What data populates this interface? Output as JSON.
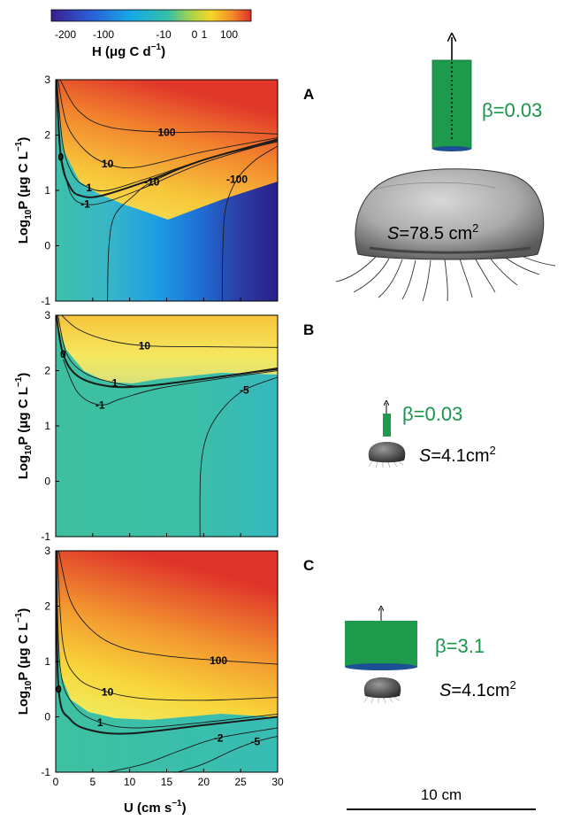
{
  "colorbar": {
    "title_main": "H (μg C d",
    "title_exp": "−1",
    "title_close": ")",
    "ticks": [
      "-200",
      "-100",
      "-10",
      "0",
      "1",
      "100"
    ],
    "colors": [
      "#3b1f8f",
      "#2a5fd6",
      "#17a9e6",
      "#33bfa8",
      "#a8d44a",
      "#f6d628",
      "#f5902a",
      "#e0312a"
    ]
  },
  "axes": {
    "ylabel_main": "Log",
    "ylabel_sub": "10",
    "ylabel_rest": "P (μg C L",
    "ylabel_exp": "−1",
    "ylabel_close": ")",
    "xlabel_main": "U (cm s",
    "xlabel_exp": "−1",
    "xlabel_close": ")",
    "yticks": [
      "3",
      "2",
      "1",
      "0",
      "-1"
    ],
    "xticks": [
      "0",
      "5",
      "10",
      "15",
      "20",
      "25",
      "30"
    ]
  },
  "panels": [
    {
      "letter": "A",
      "beta": "β=0.03",
      "s_label": "S",
      "s_value": "=78.5 cm",
      "s_exp": "2",
      "contour_labels": [
        "100",
        "10",
        "1",
        "0",
        "-1",
        "-10",
        "-100"
      ]
    },
    {
      "letter": "B",
      "beta": "β=0.03",
      "s_label": "S",
      "s_value": "=4.1cm",
      "s_exp": "2",
      "contour_labels": [
        "10",
        "1",
        "0",
        "-1",
        "-5"
      ]
    },
    {
      "letter": "C",
      "beta": "β=3.1",
      "s_label": "S",
      "s_value": "=4.1cm",
      "s_exp": "2",
      "contour_labels": [
        "100",
        "10",
        "1",
        "0",
        "-2",
        "-5"
      ]
    }
  ],
  "scalebar": {
    "label": "10 cm"
  },
  "chart_data": [
    {
      "type": "heatmap",
      "panel": "A",
      "x_range": [
        0,
        30
      ],
      "y_range": [
        -1,
        3
      ],
      "xlabel": "U (cm s−1)",
      "ylabel": "Log10P (μg C L−1)",
      "colorbar_label": "H (μg C d−1)",
      "contours": [
        {
          "level": 100,
          "points": [
            [
              0.6,
              3
            ],
            [
              3,
              2.45
            ],
            [
              7,
              2.15
            ],
            [
              15,
              2.05
            ],
            [
              22,
              2.06
            ],
            [
              30,
              2.02
            ]
          ]
        },
        {
          "level": 10,
          "points": [
            [
              0.3,
              3
            ],
            [
              1.5,
              2.2
            ],
            [
              4,
              1.72
            ],
            [
              7,
              1.48
            ],
            [
              11,
              1.42
            ],
            [
              20,
              1.7
            ],
            [
              30,
              1.95
            ]
          ]
        },
        {
          "level": 1,
          "points": [
            [
              0.15,
              3
            ],
            [
              1,
              1.8
            ],
            [
              2.5,
              1.25
            ],
            [
              4.5,
              1.05
            ],
            [
              7,
              1.0
            ],
            [
              12,
              1.2
            ],
            [
              20,
              1.55
            ],
            [
              30,
              1.93
            ]
          ]
        },
        {
          "level": 0,
          "points": [
            [
              0.1,
              3
            ],
            [
              0.7,
              1.6
            ],
            [
              2,
              1.05
            ],
            [
              3.5,
              0.9
            ],
            [
              6,
              0.9
            ],
            [
              12,
              1.15
            ],
            [
              20,
              1.55
            ],
            [
              30,
              1.92
            ]
          ]
        },
        {
          "level": -1,
          "points": [
            [
              0.5,
              1.75
            ],
            [
              2,
              0.95
            ],
            [
              4,
              0.75
            ],
            [
              7,
              0.8
            ],
            [
              12,
              1.05
            ],
            [
              20,
              1.5
            ],
            [
              30,
              1.9
            ]
          ]
        },
        {
          "level": -10,
          "points": [
            [
              7,
              -1
            ],
            [
              7.2,
              0
            ],
            [
              8,
              0.55
            ],
            [
              10.5,
              0.9
            ],
            [
              13,
              1.15
            ],
            [
              20,
              1.55
            ],
            [
              30,
              1.88
            ]
          ]
        },
        {
          "level": -100,
          "points": [
            [
              22.5,
              -1
            ],
            [
              22.6,
              0
            ],
            [
              23,
              0.7
            ],
            [
              24.5,
              1.2
            ],
            [
              27,
              1.55
            ],
            [
              30,
              1.8
            ]
          ]
        }
      ]
    },
    {
      "type": "heatmap",
      "panel": "B",
      "x_range": [
        0,
        30
      ],
      "y_range": [
        -1,
        3
      ],
      "xlabel": "U (cm s−1)",
      "ylabel": "Log10P (μg C L−1)",
      "colorbar_label": "H (μg C d−1)",
      "contours": [
        {
          "level": 10,
          "points": [
            [
              0.8,
              3
            ],
            [
              3,
              2.75
            ],
            [
              7,
              2.55
            ],
            [
              12,
              2.45
            ],
            [
              20,
              2.43
            ],
            [
              30,
              2.42
            ]
          ]
        },
        {
          "level": 1,
          "points": [
            [
              0.3,
              3
            ],
            [
              1.5,
              2.3
            ],
            [
              4,
              1.95
            ],
            [
              8,
              1.78
            ],
            [
              12,
              1.72
            ],
            [
              20,
              1.85
            ],
            [
              30,
              2.05
            ]
          ]
        },
        {
          "level": 0,
          "points": [
            [
              0.1,
              3
            ],
            [
              1,
              2.3
            ],
            [
              3,
              1.9
            ],
            [
              7,
              1.72
            ],
            [
              12,
              1.72
            ],
            [
              20,
              1.85
            ],
            [
              30,
              2.03
            ]
          ]
        },
        {
          "level": -1,
          "points": [
            [
              1,
              2.2
            ],
            [
              3,
              1.6
            ],
            [
              6,
              1.38
            ],
            [
              9,
              1.5
            ],
            [
              14,
              1.68
            ],
            [
              22,
              1.85
            ],
            [
              30,
              2.0
            ]
          ]
        },
        {
          "level": -5,
          "points": [
            [
              19.5,
              -1
            ],
            [
              19.6,
              0.2
            ],
            [
              20.5,
              0.85
            ],
            [
              22.5,
              1.3
            ],
            [
              25.5,
              1.65
            ],
            [
              30,
              1.88
            ]
          ]
        }
      ]
    },
    {
      "type": "heatmap",
      "panel": "C",
      "x_range": [
        0,
        30
      ],
      "y_range": [
        -1,
        3
      ],
      "xlabel": "U (cm s−1)",
      "ylabel": "Log10P (μg C L−1)",
      "colorbar_label": "H (μg C d−1)",
      "contours": [
        {
          "level": 100,
          "points": [
            [
              0.4,
              3
            ],
            [
              2,
              2.1
            ],
            [
              5,
              1.55
            ],
            [
              9,
              1.25
            ],
            [
              15,
              1.1
            ],
            [
              22,
              1.02
            ],
            [
              30,
              0.95
            ]
          ]
        },
        {
          "level": 10,
          "points": [
            [
              0.2,
              3
            ],
            [
              1,
              1.3
            ],
            [
              3,
              0.7
            ],
            [
              7,
              0.45
            ],
            [
              12,
              0.33
            ],
            [
              20,
              0.3
            ],
            [
              30,
              0.35
            ]
          ]
        },
        {
          "level": 1,
          "points": [
            [
              0.1,
              3
            ],
            [
              0.6,
              0.9
            ],
            [
              2.5,
              0.2
            ],
            [
              6,
              -0.1
            ],
            [
              11,
              -0.2
            ],
            [
              20,
              -0.1
            ],
            [
              30,
              0.05
            ]
          ]
        },
        {
          "level": 0,
          "points": [
            [
              0.05,
              3
            ],
            [
              0.4,
              0.5
            ],
            [
              2,
              -0.05
            ],
            [
              5,
              -0.25
            ],
            [
              10,
              -0.3
            ],
            [
              20,
              -0.15
            ],
            [
              30,
              0.0
            ]
          ]
        },
        {
          "level": -2,
          "points": [
            [
              7,
              -1
            ],
            [
              12,
              -0.85
            ],
            [
              17,
              -0.6
            ],
            [
              22,
              -0.38
            ],
            [
              30,
              -0.2
            ]
          ]
        },
        {
          "level": -5,
          "points": [
            [
              16.5,
              -1
            ],
            [
              20,
              -0.85
            ],
            [
              24,
              -0.6
            ],
            [
              27,
              -0.45
            ],
            [
              30,
              -0.35
            ]
          ]
        }
      ]
    }
  ]
}
